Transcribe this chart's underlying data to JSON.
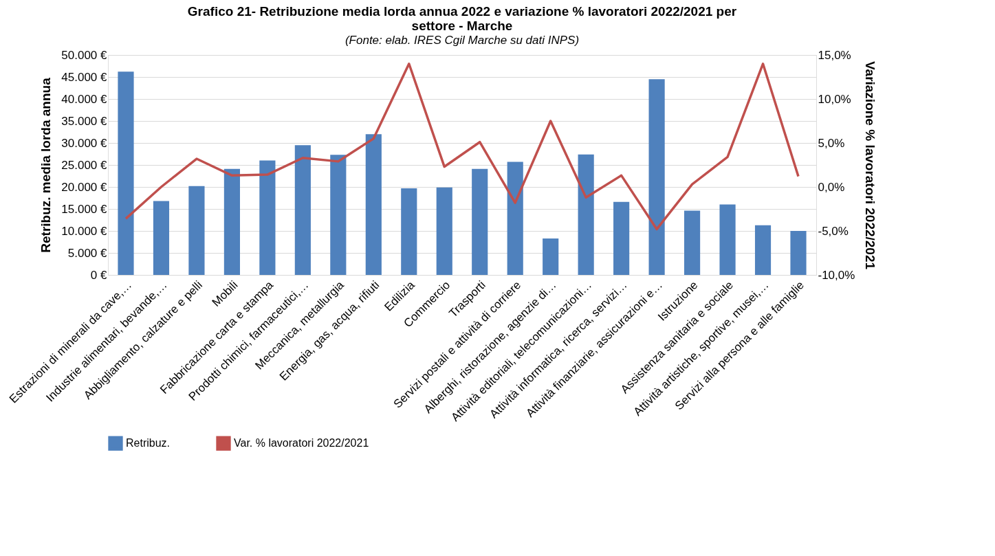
{
  "chart_data": {
    "type": "bar",
    "title": [
      "Grafico 21- Retribuzione media lorda annua 2022 e variazione % lavoratori 2022/2021 per",
      "settore - Marche"
    ],
    "subtitle": "(Fonte: elab. IRES Cgil Marche su dati INPS)",
    "ylabel": "Retribuz. media lorda annua",
    "y2label": "Variazione % lavoratori 2022/2021",
    "categories": [
      "Estrazioni di minerali da cave,…",
      "Industrie alimentari, bevande,…",
      "Abbigliamento, calzature e pelli",
      "Mobili",
      "Fabbricazione carta e stampa",
      "Prodotti chimici, farmaceutici,…",
      "Meccanica, metallurgia",
      "Energia, gas, acqua, rifiuti",
      "Edilizia",
      "Commercio",
      "Trasporti",
      "Servizi postali e attività di corriere",
      "Alberghi, ristorazione, agenzie di…",
      "Attività editoriali, telecomunicazioni…",
      "Attività informatica, ricerca, servizi…",
      "Attività finanziarie, assicurazioni e…",
      "Istruzione",
      "Assistenza sanitaria e sociale",
      "Attività artistiche, sportive, musei,…",
      "Servizi alla persona e alle famiglie"
    ],
    "series": [
      {
        "name": "Retribuz.",
        "color": "#4f81bd",
        "values": [
          46200,
          16800,
          20200,
          24100,
          26000,
          29500,
          27300,
          32000,
          19700,
          19900,
          24100,
          25700,
          8300,
          27400,
          16600,
          44500,
          14600,
          16000,
          11300,
          10000
        ]
      },
      {
        "name": "Var. % lavoratori 2022/2021",
        "type": "line",
        "axis": "y2",
        "color": "#c0504d",
        "values": [
          -3.6,
          0.0,
          3.2,
          1.3,
          1.4,
          3.3,
          2.9,
          5.5,
          14.0,
          2.3,
          5.1,
          -1.8,
          7.5,
          -1.2,
          1.3,
          -4.8,
          0.3,
          3.4,
          14.0,
          1.2
        ]
      }
    ],
    "ylim": [
      0,
      50000
    ],
    "yticks": [
      {
        "value": 0,
        "label": "0 €"
      },
      {
        "value": 5000,
        "label": "5.000 €"
      },
      {
        "value": 10000,
        "label": "10.000 €"
      },
      {
        "value": 15000,
        "label": "15.000 €"
      },
      {
        "value": 20000,
        "label": "20.000 €"
      },
      {
        "value": 25000,
        "label": "25.000 €"
      },
      {
        "value": 30000,
        "label": "30.000 €"
      },
      {
        "value": 35000,
        "label": "35.000 €"
      },
      {
        "value": 40000,
        "label": "40.000 €"
      },
      {
        "value": 45000,
        "label": "45.000 €"
      },
      {
        "value": 50000,
        "label": "50.000 €"
      }
    ],
    "y2lim": [
      -10,
      15
    ],
    "y2ticks": [
      {
        "value": -10,
        "label": "-10,0%"
      },
      {
        "value": -5,
        "label": "-5,0%"
      },
      {
        "value": 0,
        "label": "0,0%"
      },
      {
        "value": 5,
        "label": "5,0%"
      },
      {
        "value": 10,
        "label": "10,0%"
      },
      {
        "value": 15,
        "label": "15,0%"
      }
    ],
    "grid": "y",
    "legend": "bottom",
    "line_style": "solid"
  }
}
